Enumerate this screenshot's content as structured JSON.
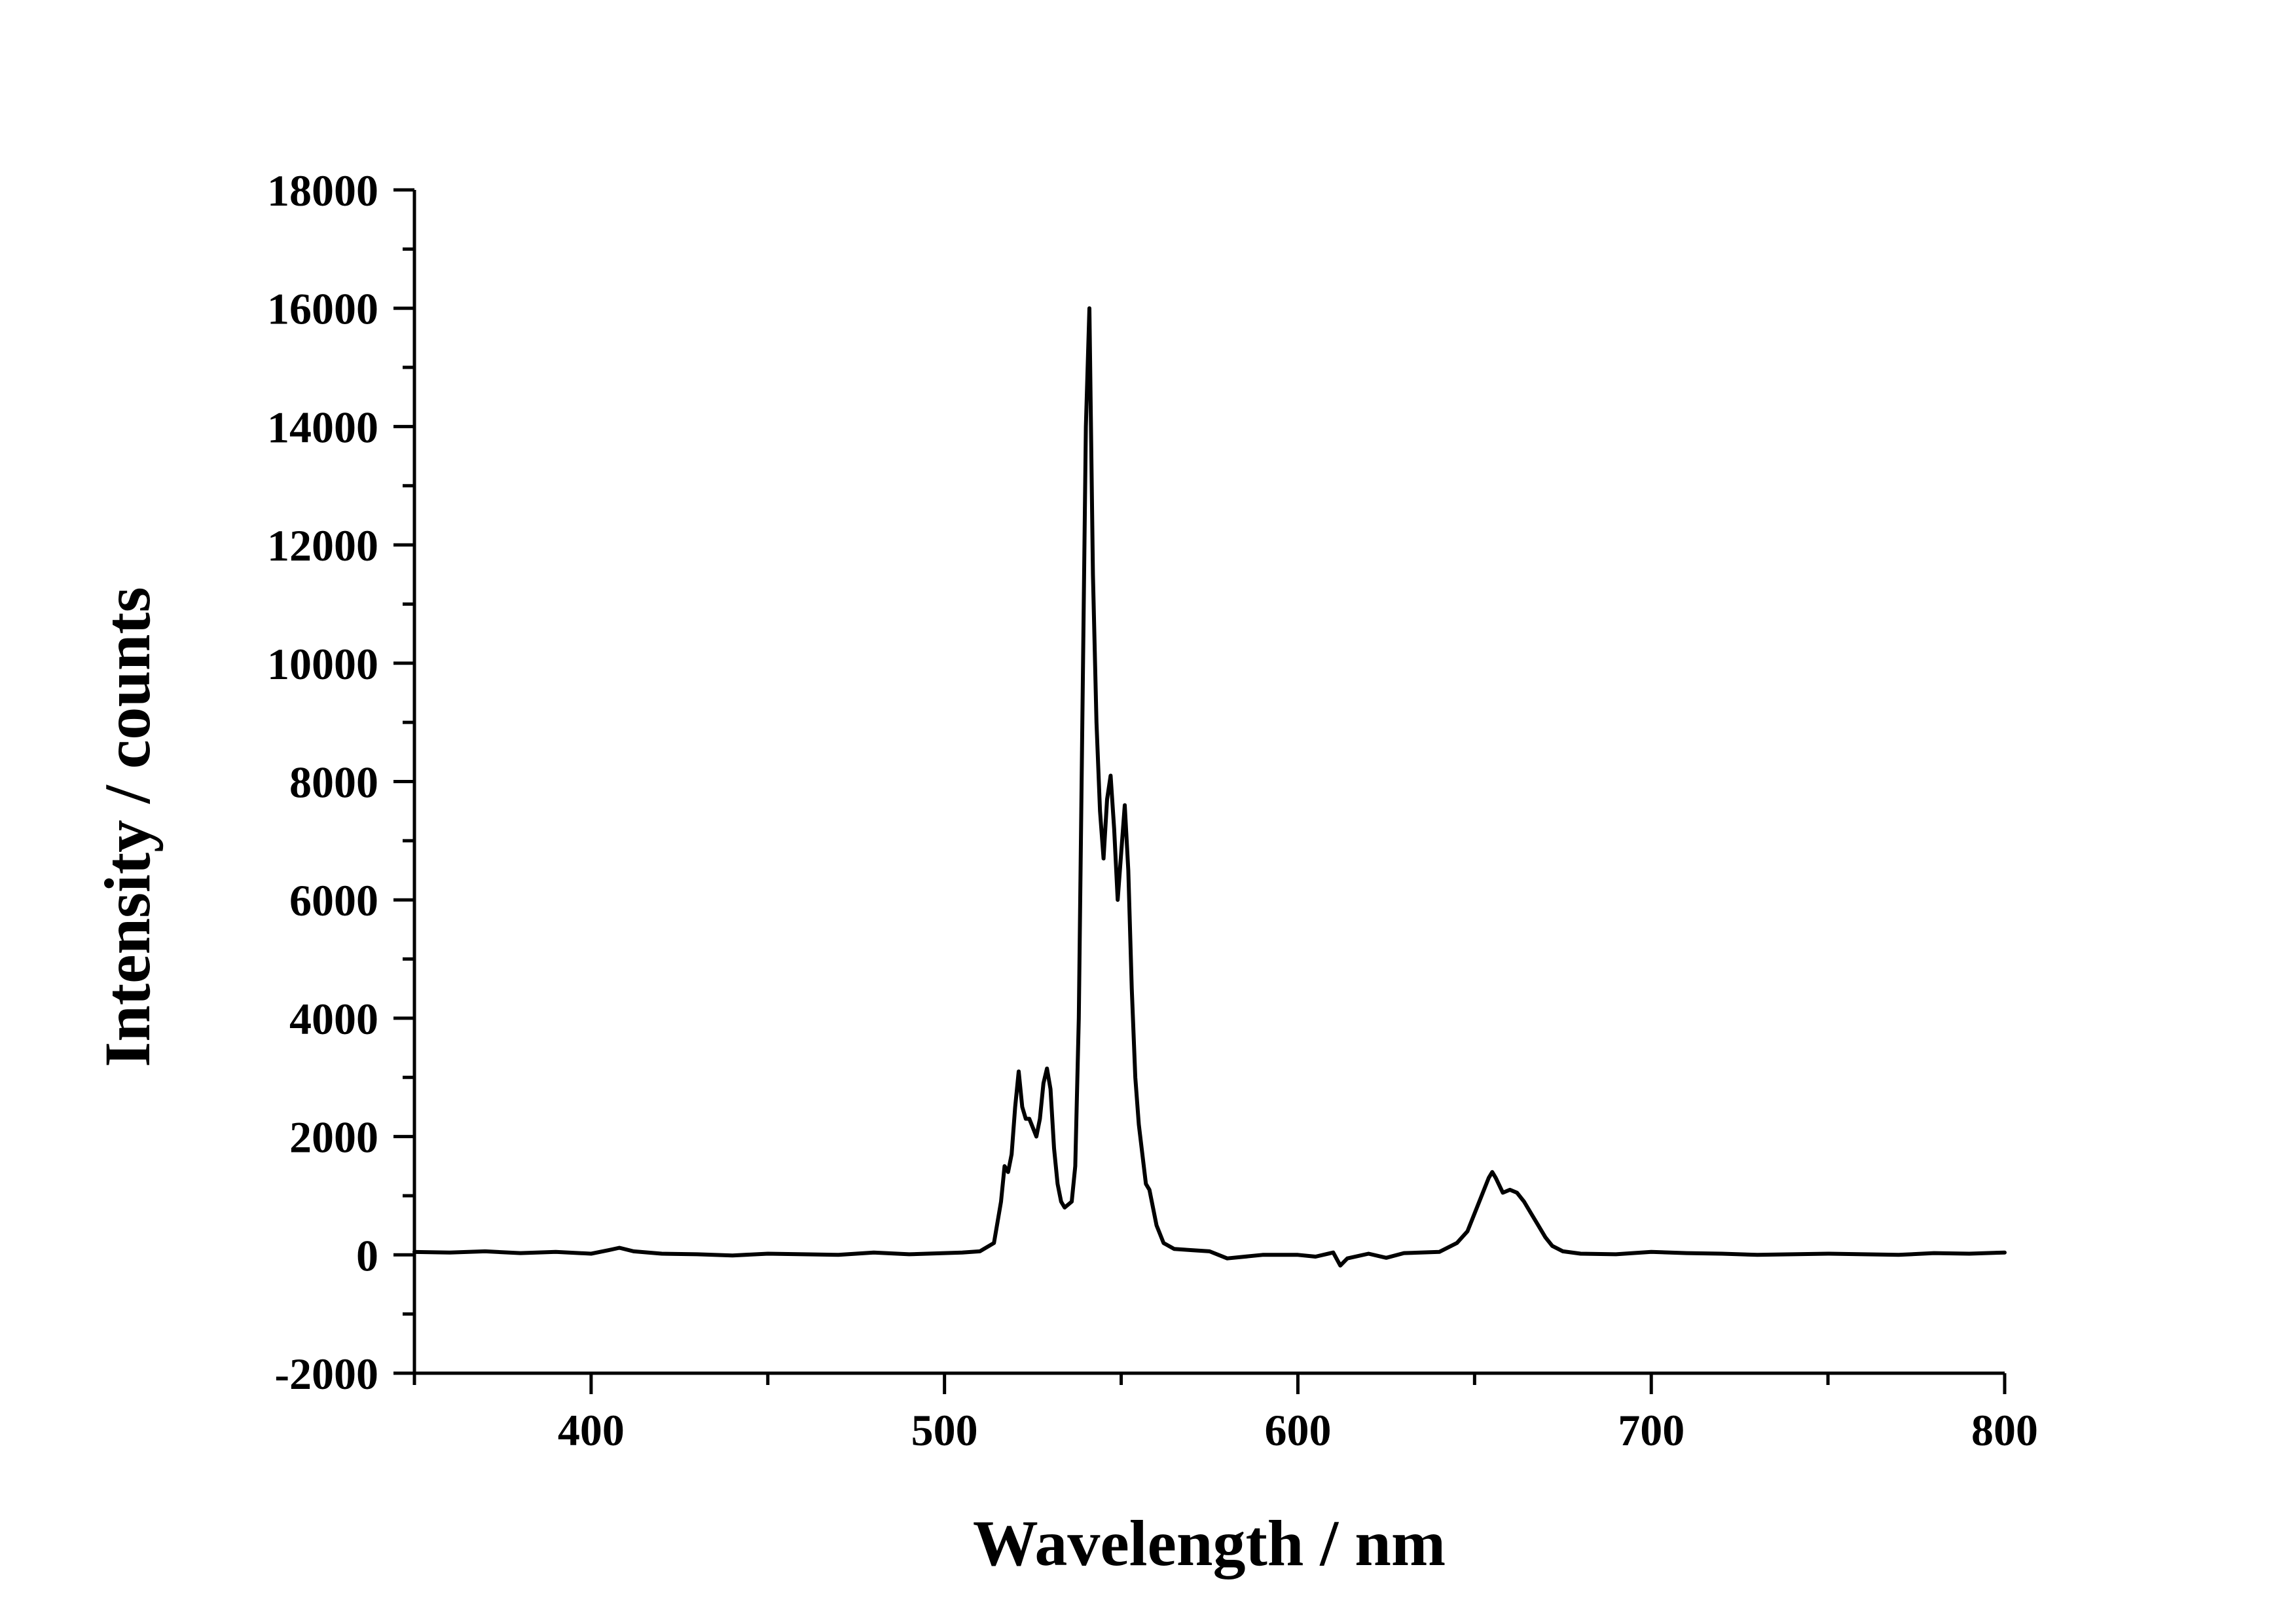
{
  "chart_data": {
    "type": "line",
    "title": "",
    "xlabel": "Wavelength / nm",
    "ylabel": "Intensity / counts",
    "xlim": [
      350,
      800
    ],
    "ylim": [
      -2000,
      18000
    ],
    "x_ticks": [
      400,
      500,
      600,
      700,
      800
    ],
    "x_tick_labels": [
      "400",
      "500",
      "600",
      "700",
      "800"
    ],
    "y_ticks": [
      -2000,
      0,
      2000,
      4000,
      6000,
      8000,
      10000,
      12000,
      14000,
      16000,
      18000
    ],
    "y_tick_labels": [
      "-2000",
      "0",
      "2000",
      "4000",
      "6000",
      "8000",
      "10000",
      "12000",
      "14000",
      "16000",
      "18000"
    ],
    "grid": false,
    "legend": "none",
    "line_color": "#000000",
    "series": [
      {
        "x": [
          350,
          360,
          370,
          380,
          390,
          400,
          405,
          408,
          412,
          420,
          430,
          440,
          450,
          460,
          470,
          480,
          490,
          500,
          505,
          510,
          514,
          516,
          517,
          518,
          519,
          520,
          521,
          522,
          523,
          524,
          525,
          526,
          527,
          528,
          529,
          530,
          531,
          532,
          533,
          534,
          535,
          536,
          537,
          538,
          539,
          540,
          541,
          542,
          543,
          544,
          545,
          546,
          547,
          548,
          549,
          550,
          551,
          552,
          553,
          554,
          555,
          556,
          557,
          558,
          559,
          560,
          562,
          565,
          570,
          575,
          580,
          590,
          600,
          605,
          610,
          612,
          614,
          620,
          625,
          630,
          640,
          645,
          648,
          650,
          652,
          654,
          655,
          656,
          658,
          660,
          662,
          664,
          666,
          668,
          670,
          672,
          675,
          680,
          690,
          700,
          710,
          720,
          730,
          740,
          750,
          760,
          770,
          780,
          790,
          800
        ],
        "y": [
          50,
          40,
          60,
          30,
          50,
          20,
          80,
          120,
          60,
          20,
          10,
          -10,
          20,
          10,
          0,
          40,
          10,
          30,
          40,
          60,
          200,
          900,
          1500,
          1400,
          1700,
          2500,
          3100,
          2500,
          2300,
          2300,
          2150,
          2000,
          2300,
          2900,
          3150,
          2800,
          1800,
          1200,
          900,
          800,
          850,
          900,
          1500,
          4000,
          9000,
          14000,
          16000,
          11500,
          9000,
          7500,
          6700,
          7700,
          8100,
          7200,
          6000,
          6800,
          7600,
          6500,
          4500,
          3000,
          2200,
          1700,
          1200,
          1100,
          800,
          500,
          200,
          100,
          80,
          60,
          -60,
          0,
          0,
          -30,
          40,
          -180,
          -60,
          20,
          -50,
          30,
          50,
          200,
          400,
          700,
          1000,
          1300,
          1400,
          1300,
          1050,
          1100,
          1050,
          900,
          700,
          500,
          300,
          150,
          60,
          20,
          10,
          50,
          30,
          20,
          0,
          10,
          20,
          10,
          0,
          30,
          20,
          40
        ]
      }
    ]
  }
}
